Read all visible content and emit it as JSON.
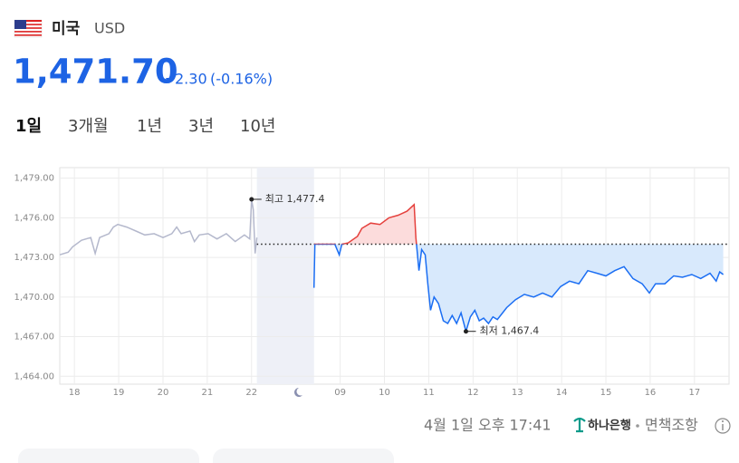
{
  "header": {
    "country": "미국",
    "currency": "USD",
    "price": "1,471.70",
    "change": "2.30",
    "change_rate": "(-0.16%)"
  },
  "tabs": [
    "1일",
    "3개월",
    "1년",
    "3년",
    "10년"
  ],
  "selected_tab": 0,
  "chart_data": {
    "type": "line",
    "xlim": [
      17.67,
      32.78
    ],
    "ylim": [
      1463.4,
      1479.8
    ],
    "xticks": [
      18,
      19,
      20,
      21,
      22,
      {
        "value": 24,
        "label": "09"
      },
      {
        "value": 25,
        "label": "10"
      },
      {
        "value": 26,
        "label": "11"
      },
      {
        "value": 27,
        "label": "12"
      },
      {
        "value": 28,
        "label": "13"
      },
      {
        "value": 29,
        "label": "14"
      },
      {
        "value": 30,
        "label": "15"
      },
      {
        "value": 31,
        "label": "16"
      },
      {
        "value": 32,
        "label": "17"
      }
    ],
    "yticks": [
      {
        "value": 1479,
        "label": "1,479.00"
      },
      {
        "value": 1476,
        "label": "1,476.00"
      },
      {
        "value": 1473,
        "label": "1,473.00"
      },
      {
        "value": 1470,
        "label": "1,470.00"
      },
      {
        "value": 1467,
        "label": "1,467.00"
      },
      {
        "value": 1464,
        "label": "1,464.00"
      }
    ],
    "grid": true,
    "baseline": 1474.0,
    "series": [
      {
        "color": "#b4b8cc",
        "x": [
          17.67,
          17.86,
          17.96,
          18.16,
          18.37,
          18.47,
          18.57,
          18.78,
          18.88,
          18.98,
          19.18,
          19.39,
          19.59,
          19.8,
          20.0,
          20.2,
          20.31,
          20.41,
          20.61,
          20.71,
          20.82,
          21.02,
          21.22,
          21.43,
          21.63,
          21.84,
          21.96,
          22.0,
          22.04,
          22.08,
          22.12
        ],
        "values": [
          1473.2,
          1473.4,
          1473.8,
          1474.3,
          1474.5,
          1473.3,
          1474.5,
          1474.8,
          1475.3,
          1475.5,
          1475.3,
          1475.0,
          1474.7,
          1474.8,
          1474.5,
          1474.8,
          1475.3,
          1474.8,
          1475.0,
          1474.2,
          1474.7,
          1474.8,
          1474.4,
          1474.8,
          1474.2,
          1474.7,
          1474.4,
          1477.4,
          1476.6,
          1473.3,
          1474.5
        ]
      },
      {
        "color": "#1b6ef3",
        "color_above": "#e5413d",
        "fill": "#d8e9fc",
        "fill_above": "#fcdcdc",
        "x": [
          23.41,
          23.43,
          23.67,
          23.88,
          23.98,
          24.04,
          24.18,
          24.39,
          24.49,
          24.69,
          24.9,
          25.1,
          25.31,
          25.51,
          25.67,
          25.71,
          25.78,
          25.84,
          25.92,
          25.98,
          26.04,
          26.12,
          26.22,
          26.33,
          26.43,
          26.53,
          26.63,
          26.73,
          26.84,
          26.94,
          27.04,
          27.14,
          27.24,
          27.35,
          27.45,
          27.55,
          27.76,
          27.96,
          28.16,
          28.37,
          28.57,
          28.78,
          28.98,
          29.18,
          29.39,
          29.59,
          29.8,
          30.0,
          30.2,
          30.41,
          30.61,
          30.82,
          30.98,
          31.12,
          31.33,
          31.53,
          31.73,
          31.94,
          32.14,
          32.35,
          32.49,
          32.57,
          32.65
        ],
        "values": [
          1470.7,
          1474.0,
          1474.0,
          1474.0,
          1473.2,
          1474.0,
          1474.1,
          1474.6,
          1475.2,
          1475.6,
          1475.5,
          1476.0,
          1476.2,
          1476.5,
          1477.0,
          1474.5,
          1472.0,
          1473.6,
          1473.2,
          1471.0,
          1469.0,
          1470.0,
          1469.5,
          1468.2,
          1468.0,
          1468.6,
          1468.0,
          1468.8,
          1467.4,
          1468.5,
          1469.0,
          1468.2,
          1468.4,
          1468.0,
          1468.5,
          1468.3,
          1469.2,
          1469.8,
          1470.2,
          1470.0,
          1470.3,
          1470.0,
          1470.8,
          1471.2,
          1471.0,
          1472.0,
          1471.8,
          1471.6,
          1472.0,
          1472.3,
          1471.4,
          1471.0,
          1470.3,
          1471.0,
          1471.0,
          1471.6,
          1471.5,
          1471.7,
          1471.4,
          1471.8,
          1471.2,
          1471.9,
          1471.7
        ]
      }
    ],
    "annotations": [
      {
        "label": "최고 1,477.4",
        "x": 22.0,
        "value": 1477.4
      },
      {
        "label": "최저 1,467.4",
        "x": 26.84,
        "value": 1467.4
      }
    ]
  },
  "footer": {
    "timestamp": "4월 1일 오후 17:41",
    "bank": "하나은행",
    "disclaimer": "면책조항"
  }
}
